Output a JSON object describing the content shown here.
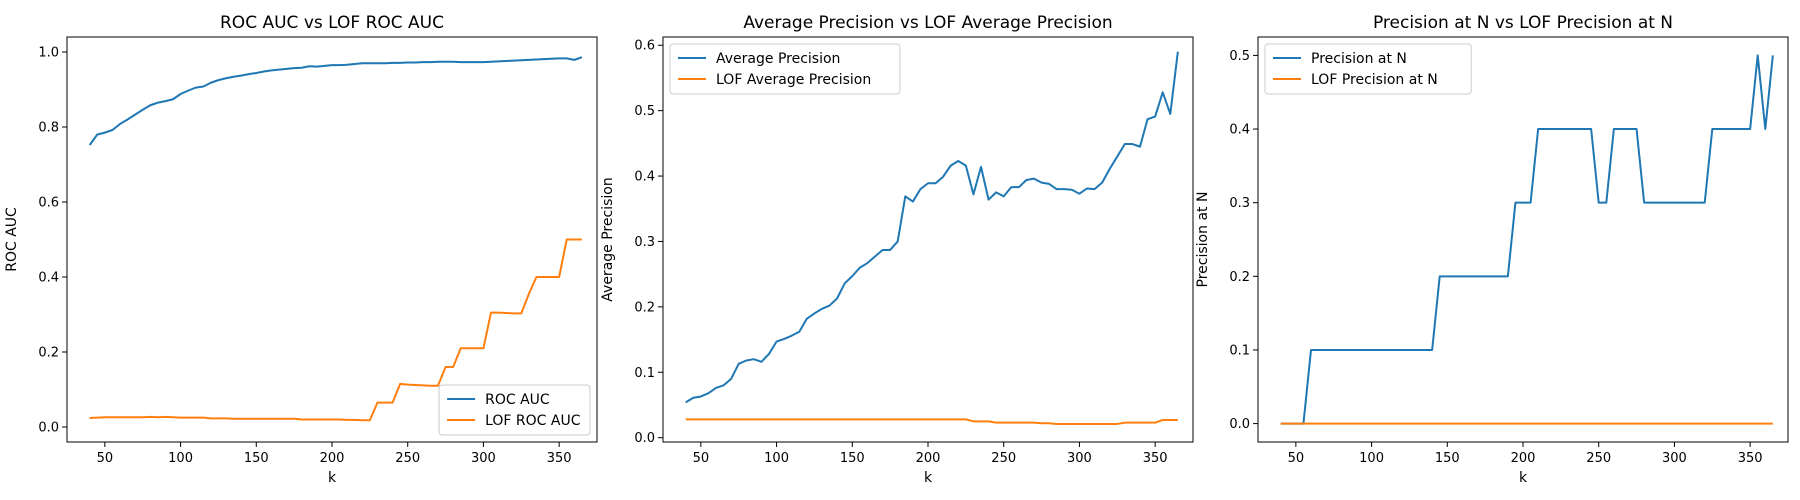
{
  "chart_data": [
    {
      "type": "line",
      "title": "ROC AUC vs LOF ROC AUC",
      "xlabel": "k",
      "ylabel": "ROC AUC",
      "xlim": [
        25,
        375
      ],
      "ylim": [
        -0.04,
        1.04
      ],
      "xticks": [
        50,
        100,
        150,
        200,
        250,
        300,
        350
      ],
      "yticks": [
        0.0,
        0.2,
        0.4,
        0.6,
        0.8,
        1.0
      ],
      "ytick_decimals": 1,
      "legend": "lower-right",
      "x": [
        40,
        45,
        50,
        55,
        60,
        65,
        70,
        75,
        80,
        85,
        90,
        95,
        100,
        105,
        110,
        115,
        120,
        125,
        130,
        135,
        140,
        145,
        150,
        155,
        160,
        165,
        170,
        175,
        180,
        185,
        190,
        195,
        200,
        205,
        210,
        215,
        220,
        225,
        230,
        235,
        240,
        245,
        250,
        255,
        260,
        265,
        270,
        275,
        280,
        285,
        290,
        295,
        300,
        305,
        310,
        315,
        320,
        325,
        330,
        335,
        340,
        345,
        350,
        355,
        360,
        365
      ],
      "series": [
        {
          "name": "ROC AUC",
          "color": "#1f77b4",
          "values": [
            0.752,
            0.78,
            0.785,
            0.792,
            0.808,
            0.82,
            0.833,
            0.846,
            0.858,
            0.865,
            0.869,
            0.874,
            0.888,
            0.897,
            0.905,
            0.908,
            0.918,
            0.925,
            0.93,
            0.934,
            0.937,
            0.941,
            0.944,
            0.948,
            0.951,
            0.953,
            0.955,
            0.957,
            0.958,
            0.962,
            0.961,
            0.963,
            0.965,
            0.965,
            0.966,
            0.968,
            0.97,
            0.97,
            0.97,
            0.97,
            0.971,
            0.971,
            0.972,
            0.972,
            0.973,
            0.973,
            0.974,
            0.974,
            0.974,
            0.973,
            0.973,
            0.973,
            0.973,
            0.974,
            0.975,
            0.976,
            0.977,
            0.978,
            0.979,
            0.98,
            0.981,
            0.982,
            0.983,
            0.983,
            0.979,
            0.986
          ]
        },
        {
          "name": "LOF ROC AUC",
          "color": "#ff7f0e",
          "values": [
            0.024,
            0.025,
            0.026,
            0.026,
            0.026,
            0.026,
            0.026,
            0.026,
            0.027,
            0.026,
            0.027,
            0.026,
            0.025,
            0.025,
            0.025,
            0.025,
            0.023,
            0.023,
            0.023,
            0.022,
            0.022,
            0.022,
            0.022,
            0.022,
            0.022,
            0.022,
            0.022,
            0.022,
            0.02,
            0.02,
            0.02,
            0.02,
            0.02,
            0.02,
            0.019,
            0.019,
            0.018,
            0.018,
            0.065,
            0.065,
            0.065,
            0.115,
            0.113,
            0.112,
            0.111,
            0.11,
            0.11,
            0.16,
            0.16,
            0.21,
            0.21,
            0.21,
            0.21,
            0.305,
            0.305,
            0.304,
            0.303,
            0.303,
            0.355,
            0.4,
            0.4,
            0.4,
            0.4,
            0.5,
            0.5,
            0.5
          ]
        }
      ]
    },
    {
      "type": "line",
      "title": "Average Precision vs LOF Average Precision",
      "xlabel": "k",
      "ylabel": "Average Precision",
      "xlim": [
        25,
        375
      ],
      "ylim": [
        -0.0066,
        0.6126
      ],
      "xticks": [
        50,
        100,
        150,
        200,
        250,
        300,
        350
      ],
      "yticks": [
        0.0,
        0.1,
        0.2,
        0.3,
        0.4,
        0.5,
        0.6
      ],
      "ytick_decimals": 1,
      "legend": "upper-left",
      "x": [
        40,
        45,
        50,
        55,
        60,
        65,
        70,
        75,
        80,
        85,
        90,
        95,
        100,
        105,
        110,
        115,
        120,
        125,
        130,
        135,
        140,
        145,
        150,
        155,
        160,
        165,
        170,
        175,
        180,
        185,
        190,
        195,
        200,
        205,
        210,
        215,
        220,
        225,
        230,
        235,
        240,
        245,
        250,
        255,
        260,
        265,
        270,
        275,
        280,
        285,
        290,
        295,
        300,
        305,
        310,
        315,
        320,
        325,
        330,
        335,
        340,
        345,
        350,
        355,
        360,
        365
      ],
      "series": [
        {
          "name": "Average Precision",
          "color": "#1f77b4",
          "values": [
            0.054,
            0.061,
            0.063,
            0.068,
            0.076,
            0.08,
            0.09,
            0.113,
            0.118,
            0.12,
            0.116,
            0.128,
            0.147,
            0.151,
            0.156,
            0.162,
            0.182,
            0.19,
            0.197,
            0.202,
            0.213,
            0.236,
            0.247,
            0.26,
            0.267,
            0.277,
            0.287,
            0.287,
            0.3,
            0.369,
            0.361,
            0.38,
            0.389,
            0.389,
            0.399,
            0.416,
            0.423,
            0.416,
            0.372,
            0.414,
            0.364,
            0.375,
            0.369,
            0.383,
            0.383,
            0.394,
            0.396,
            0.39,
            0.388,
            0.38,
            0.38,
            0.379,
            0.373,
            0.381,
            0.38,
            0.39,
            0.411,
            0.43,
            0.449,
            0.449,
            0.445,
            0.487,
            0.491,
            0.528,
            0.495,
            0.59
          ]
        },
        {
          "name": "LOF Average Precision",
          "color": "#ff7f0e",
          "values": [
            0.028,
            0.028,
            0.028,
            0.028,
            0.028,
            0.028,
            0.028,
            0.028,
            0.028,
            0.028,
            0.028,
            0.028,
            0.028,
            0.028,
            0.028,
            0.028,
            0.028,
            0.028,
            0.028,
            0.028,
            0.028,
            0.028,
            0.028,
            0.028,
            0.028,
            0.028,
            0.028,
            0.028,
            0.028,
            0.028,
            0.028,
            0.028,
            0.028,
            0.028,
            0.028,
            0.028,
            0.028,
            0.028,
            0.025,
            0.025,
            0.025,
            0.023,
            0.023,
            0.023,
            0.023,
            0.023,
            0.023,
            0.022,
            0.022,
            0.021,
            0.021,
            0.021,
            0.021,
            0.021,
            0.021,
            0.021,
            0.021,
            0.021,
            0.023,
            0.023,
            0.023,
            0.023,
            0.023,
            0.027,
            0.027,
            0.027
          ]
        }
      ]
    },
    {
      "type": "line",
      "title": "Precision at N vs LOF Precision at N",
      "xlabel": "k",
      "ylabel": "Precision at N",
      "xlim": [
        25,
        375
      ],
      "ylim": [
        -0.025,
        0.525
      ],
      "xticks": [
        50,
        100,
        150,
        200,
        250,
        300,
        350
      ],
      "yticks": [
        0.0,
        0.1,
        0.2,
        0.3,
        0.4,
        0.5
      ],
      "ytick_decimals": 1,
      "legend": "upper-left",
      "x": [
        40,
        45,
        50,
        55,
        60,
        65,
        70,
        75,
        80,
        85,
        90,
        95,
        100,
        105,
        110,
        115,
        120,
        125,
        130,
        135,
        140,
        145,
        150,
        155,
        160,
        165,
        170,
        175,
        180,
        185,
        190,
        195,
        200,
        205,
        210,
        215,
        220,
        225,
        230,
        235,
        240,
        245,
        250,
        255,
        260,
        265,
        270,
        275,
        280,
        285,
        290,
        295,
        300,
        305,
        310,
        315,
        320,
        325,
        330,
        335,
        340,
        345,
        350,
        355,
        360,
        365
      ],
      "series": [
        {
          "name": "Precision at N",
          "color": "#1f77b4",
          "values": [
            0.0,
            0.0,
            0.0,
            0.0,
            0.1,
            0.1,
            0.1,
            0.1,
            0.1,
            0.1,
            0.1,
            0.1,
            0.1,
            0.1,
            0.1,
            0.1,
            0.1,
            0.1,
            0.1,
            0.1,
            0.1,
            0.2,
            0.2,
            0.2,
            0.2,
            0.2,
            0.2,
            0.2,
            0.2,
            0.2,
            0.2,
            0.3,
            0.3,
            0.3,
            0.4,
            0.4,
            0.4,
            0.4,
            0.4,
            0.4,
            0.4,
            0.4,
            0.3,
            0.3,
            0.4,
            0.4,
            0.4,
            0.4,
            0.3,
            0.3,
            0.3,
            0.3,
            0.3,
            0.3,
            0.3,
            0.3,
            0.3,
            0.4,
            0.4,
            0.4,
            0.4,
            0.4,
            0.4,
            0.5,
            0.4,
            0.5
          ]
        },
        {
          "name": "LOF Precision at N",
          "color": "#ff7f0e",
          "values": [
            0.0,
            0.0,
            0.0,
            0.0,
            0.0,
            0.0,
            0.0,
            0.0,
            0.0,
            0.0,
            0.0,
            0.0,
            0.0,
            0.0,
            0.0,
            0.0,
            0.0,
            0.0,
            0.0,
            0.0,
            0.0,
            0.0,
            0.0,
            0.0,
            0.0,
            0.0,
            0.0,
            0.0,
            0.0,
            0.0,
            0.0,
            0.0,
            0.0,
            0.0,
            0.0,
            0.0,
            0.0,
            0.0,
            0.0,
            0.0,
            0.0,
            0.0,
            0.0,
            0.0,
            0.0,
            0.0,
            0.0,
            0.0,
            0.0,
            0.0,
            0.0,
            0.0,
            0.0,
            0.0,
            0.0,
            0.0,
            0.0,
            0.0,
            0.0,
            0.0,
            0.0,
            0.0,
            0.0,
            0.0,
            0.0,
            0.0
          ]
        }
      ]
    }
  ]
}
